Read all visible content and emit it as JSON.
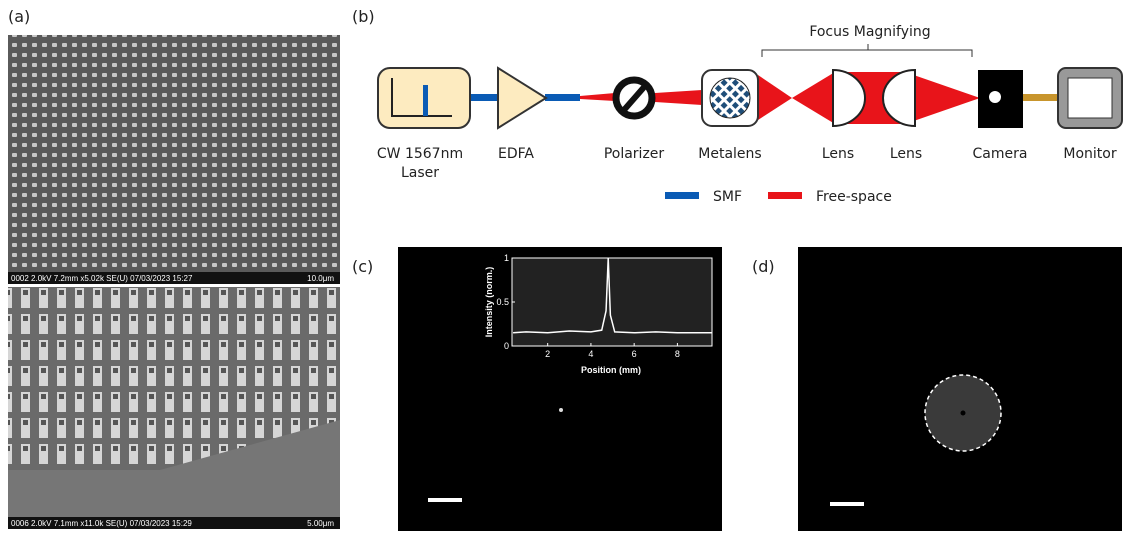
{
  "panels": {
    "a": {
      "label": "(a)",
      "top_caption": {
        "left": "0002 2.0kV 7.2mm x5.02k SE(U) 07/03/2023 15:27",
        "scale": "10.0μm"
      },
      "bottom_caption": {
        "left": "0006 2.0kV 7.1mm x11.0k SE(U) 07/03/2023 15:29",
        "scale": "5.00μm"
      }
    },
    "b": {
      "label": "(b)",
      "bracket": "Focus Magnifying",
      "components": {
        "laser": [
          "CW 1567nm",
          "Laser"
        ],
        "edfa": "EDFA",
        "polarizer": "Polarizer",
        "metalens": "Metalens",
        "lens1": "Lens",
        "lens2": "Lens",
        "camera": "Camera",
        "monitor": "Monitor"
      },
      "legend": [
        {
          "name": "SMF",
          "color": "#0a5bb5"
        },
        {
          "name": "Free-space",
          "color": "#e8141a"
        }
      ]
    },
    "c": {
      "label": "(c)",
      "inset": {
        "type": "line",
        "xlabel": "Position (mm)",
        "ylabel": "Intensity (norm.)",
        "x": [
          0.4,
          1,
          2,
          3,
          4,
          4.5,
          4.7,
          4.8,
          4.9,
          5.1,
          6,
          7,
          8,
          9.6
        ],
        "values": [
          0.15,
          0.16,
          0.15,
          0.17,
          0.16,
          0.18,
          0.4,
          1,
          0.35,
          0.16,
          0.15,
          0.16,
          0.15,
          0.15
        ],
        "color": "#ffffff",
        "xlim": [
          0.35,
          9.6
        ],
        "ylim": [
          0,
          1
        ],
        "xticks": [
          2,
          4,
          6,
          8
        ],
        "yticks": [
          0,
          0.5,
          1
        ]
      }
    },
    "d": {
      "label": "(d)"
    }
  }
}
